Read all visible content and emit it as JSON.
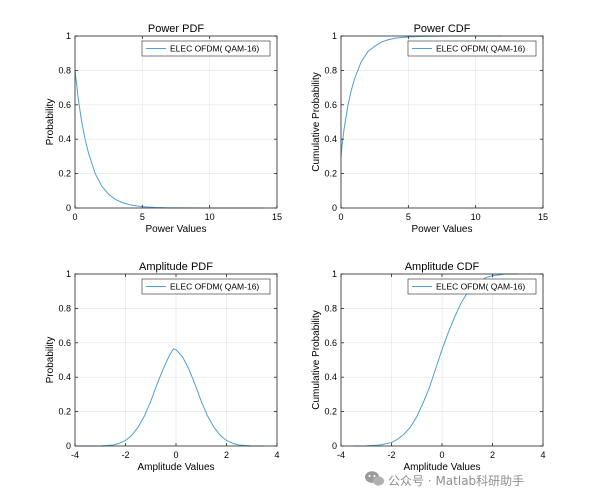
{
  "line_color": "#4f9fd8",
  "grid_color": "#e6e6e6",
  "watermark": {
    "text": "公众号 · Matlab科研助手",
    "icon": "wechat-icon"
  },
  "chart_data": [
    {
      "type": "line",
      "title": "Power PDF",
      "xlabel": "Power Values",
      "ylabel": "Probability",
      "xlim": [
        0,
        15
      ],
      "ylim": [
        0,
        1
      ],
      "xticks": [
        0,
        5,
        10,
        15
      ],
      "yticks": [
        0,
        0.2,
        0.4,
        0.6,
        0.8,
        1
      ],
      "grid": true,
      "legend_position": "top-right",
      "series": [
        {
          "name": "ELEC OFDM( QAM-16)",
          "x": [
            0,
            0.25,
            0.5,
            0.75,
            1,
            1.5,
            2,
            2.5,
            3,
            3.5,
            4,
            4.5,
            5,
            5.5,
            6,
            7,
            8,
            10,
            12,
            14
          ],
          "y": [
            0.8,
            0.63,
            0.5,
            0.4,
            0.32,
            0.2,
            0.125,
            0.08,
            0.05,
            0.032,
            0.02,
            0.013,
            0.008,
            0.005,
            0.003,
            0.001,
            0.0005,
            0.0002,
            0.0001,
            0
          ]
        }
      ]
    },
    {
      "type": "line",
      "title": "Power CDF",
      "xlabel": "Power Values",
      "ylabel": "Cumulative Probability",
      "xlim": [
        0,
        15
      ],
      "ylim": [
        0,
        1
      ],
      "xticks": [
        0,
        5,
        10,
        15
      ],
      "yticks": [
        0,
        0.2,
        0.4,
        0.6,
        0.8,
        1
      ],
      "grid": true,
      "legend_position": "top-right",
      "series": [
        {
          "name": "ELEC OFDM( QAM-16)",
          "x": [
            0,
            0.1,
            0.25,
            0.5,
            0.75,
            1,
            1.5,
            2,
            2.5,
            3,
            3.5,
            4,
            5,
            6,
            8,
            10,
            12
          ],
          "y": [
            0.3,
            0.38,
            0.47,
            0.59,
            0.68,
            0.75,
            0.85,
            0.91,
            0.94,
            0.965,
            0.978,
            0.987,
            0.995,
            0.998,
            1,
            1,
            1
          ]
        }
      ]
    },
    {
      "type": "line",
      "title": "Amplitude PDF",
      "xlabel": "Amplitude Values",
      "ylabel": "Probability",
      "xlim": [
        -4,
        4
      ],
      "ylim": [
        0,
        1
      ],
      "xticks": [
        -4,
        -2,
        0,
        2,
        4
      ],
      "yticks": [
        0,
        0.2,
        0.4,
        0.6,
        0.8,
        1
      ],
      "grid": true,
      "legend_position": "top-right",
      "series": [
        {
          "name": "ELEC OFDM( QAM-16)",
          "x": [
            -4,
            -3,
            -2.5,
            -2.25,
            -2,
            -1.75,
            -1.5,
            -1.25,
            -1,
            -0.75,
            -0.5,
            -0.25,
            -0.1,
            0,
            0.25,
            0.5,
            0.75,
            1,
            1.25,
            1.5,
            1.75,
            2,
            2.25,
            2.5,
            3,
            3.5
          ],
          "y": [
            0,
            0,
            0.006,
            0.015,
            0.032,
            0.062,
            0.11,
            0.175,
            0.26,
            0.36,
            0.45,
            0.53,
            0.565,
            0.56,
            0.52,
            0.45,
            0.36,
            0.26,
            0.175,
            0.11,
            0.062,
            0.032,
            0.015,
            0.006,
            0,
            0
          ]
        }
      ]
    },
    {
      "type": "line",
      "title": "Amplitude CDF",
      "xlabel": "Amplitude Values",
      "ylabel": "Cumulative Probability",
      "xlim": [
        -4,
        4
      ],
      "ylim": [
        0,
        1
      ],
      "xticks": [
        -4,
        -2,
        0,
        2,
        4
      ],
      "yticks": [
        0,
        0.2,
        0.4,
        0.6,
        0.8,
        1
      ],
      "grid": true,
      "legend_position": "top-right",
      "series": [
        {
          "name": "ELEC OFDM( QAM-16)",
          "x": [
            -3.5,
            -3,
            -2.5,
            -2,
            -1.75,
            -1.5,
            -1.25,
            -1,
            -0.75,
            -0.5,
            -0.25,
            0,
            0.25,
            0.5,
            0.75,
            1,
            1.25,
            1.5,
            1.75,
            2,
            2.5,
            3
          ],
          "y": [
            0,
            0.001,
            0.005,
            0.02,
            0.04,
            0.07,
            0.11,
            0.17,
            0.25,
            0.34,
            0.45,
            0.56,
            0.66,
            0.75,
            0.83,
            0.89,
            0.93,
            0.96,
            0.98,
            0.99,
            1,
            1
          ]
        }
      ]
    }
  ]
}
